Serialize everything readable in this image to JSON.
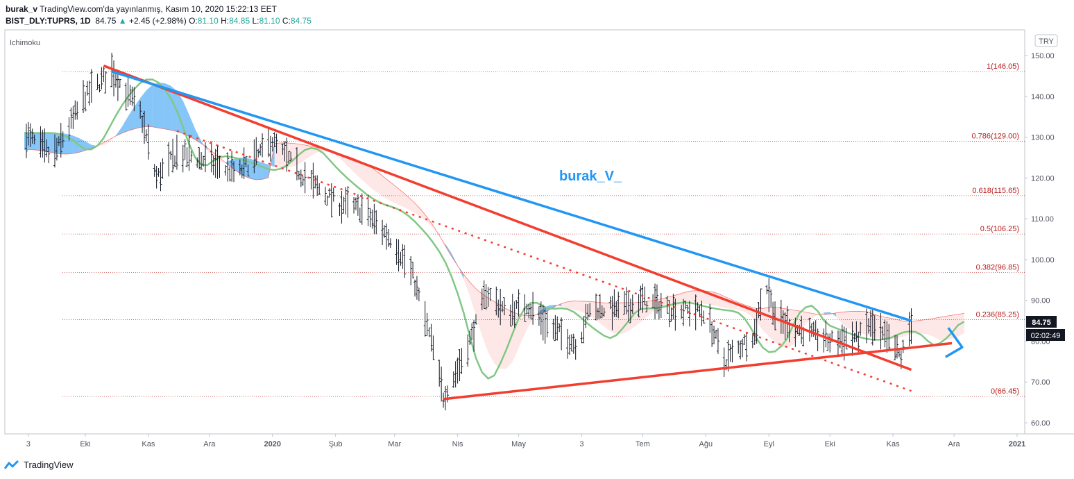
{
  "header": {
    "line1_user": "burak_v",
    "line1_rest": " TradingView.com'da yayınlanmış, Kasım 10, 2020 15:22:13 EET",
    "symbol": "BIST_DLY:TUPRS, 1D",
    "last": "84.75",
    "change": "+2.45 (+2.98%)",
    "o_label": "O:",
    "o_val": "81.10",
    "h_label": "H:",
    "h_val": "84.85",
    "l_label": "L:",
    "l_val": "81.10",
    "c_label": "C:",
    "c_val": "84.75"
  },
  "indicator_label": "Ichimoku",
  "currency": "TRY",
  "watermark": "burak_V_",
  "price_badge": "84.75",
  "countdown_badge": "02:02:49",
  "footer": {
    "brand": "TradingView"
  },
  "colors": {
    "candle": "#131722",
    "cloud_bull": "#2196f3",
    "cloud_bear": "#f44336",
    "green_line": "#81c784",
    "red_trend": "#f23d2f",
    "blue_trend": "#2196f3",
    "fib_line": "#b71c1c",
    "price_badge": "#131722"
  },
  "chart_data": {
    "type": "candlestick",
    "title": "BIST_DLY:TUPRS, 1D",
    "ylim": [
      56.5,
      153
    ],
    "y_ticks": [
      "150.00",
      "140.00",
      "130.00",
      "120.00",
      "110.00",
      "100.00",
      "90.00",
      "80.00",
      "70.00",
      "60.00"
    ],
    "x_ticks": [
      "3",
      "Eki",
      "Kas",
      "Ara",
      "2020",
      "Şub",
      "Mar",
      "Nis",
      "May",
      "3",
      "Tem",
      "Ağu",
      "Eyl",
      "Eki",
      "Kas",
      "Ara",
      "2021"
    ],
    "fib_levels": [
      {
        "label": "1(146.05)",
        "value": 146.05
      },
      {
        "label": "0.786(129.00)",
        "value": 129.0
      },
      {
        "label": "0.618(115.65)",
        "value": 115.65
      },
      {
        "label": "0.5(106.25)",
        "value": 106.25
      },
      {
        "label": "0.382(96.85)",
        "value": 96.85
      },
      {
        "label": "0.236(85.25)",
        "value": 85.25
      },
      {
        "label": "0(66.45)",
        "value": 66.45
      }
    ],
    "price_path": [
      [
        "2019-09-01",
        131
      ],
      [
        "2019-09-15",
        125
      ],
      [
        "2019-10-01",
        140
      ],
      [
        "2019-10-14",
        146.05
      ],
      [
        "2019-10-28",
        136
      ],
      [
        "2019-11-05",
        120
      ],
      [
        "2019-11-15",
        126
      ],
      [
        "2019-12-01",
        124
      ],
      [
        "2019-12-15",
        121
      ],
      [
        "2020-01-01",
        129
      ],
      [
        "2020-01-15",
        121
      ],
      [
        "2020-02-01",
        114
      ],
      [
        "2020-02-15",
        112
      ],
      [
        "2020-03-01",
        104
      ],
      [
        "2020-03-10",
        96
      ],
      [
        "2020-03-20",
        78
      ],
      [
        "2020-03-25",
        66.45
      ],
      [
        "2020-04-01",
        73
      ],
      [
        "2020-04-10",
        84
      ],
      [
        "2020-04-15",
        92
      ],
      [
        "2020-04-25",
        87
      ],
      [
        "2020-05-05",
        89
      ],
      [
        "2020-05-15",
        84
      ],
      [
        "2020-05-30",
        79
      ],
      [
        "2020-06-05",
        88
      ],
      [
        "2020-06-20",
        88
      ],
      [
        "2020-07-01",
        90
      ],
      [
        "2020-07-15",
        88
      ],
      [
        "2020-08-01",
        87
      ],
      [
        "2020-08-10",
        75
      ],
      [
        "2020-08-25",
        82
      ],
      [
        "2020-08-30",
        95
      ],
      [
        "2020-09-05",
        85
      ],
      [
        "2020-09-20",
        82
      ],
      [
        "2020-10-01",
        80
      ],
      [
        "2020-10-15",
        81
      ],
      [
        "2020-10-20",
        84
      ],
      [
        "2020-11-01",
        79
      ],
      [
        "2020-11-05",
        76
      ],
      [
        "2020-11-10",
        84.75
      ]
    ],
    "trend_lines": [
      {
        "name": "red-upper",
        "start": [
          "2019-10-10",
          147.5
        ],
        "end": [
          "2020-11-10",
          73
        ]
      },
      {
        "name": "blue-upper",
        "start": [
          "2019-10-14",
          146.1
        ],
        "end": [
          "2020-11-10",
          85
        ]
      },
      {
        "name": "red-support",
        "start": [
          "2020-03-25",
          65.8
        ],
        "end": [
          "2020-11-30",
          79.5
        ]
      },
      {
        "name": "red-dotted",
        "start": [
          "2019-11-15",
          131.5
        ],
        "end": [
          "2020-11-10",
          67.8
        ]
      }
    ],
    "legend": [],
    "xlabel": "",
    "ylabel": ""
  }
}
